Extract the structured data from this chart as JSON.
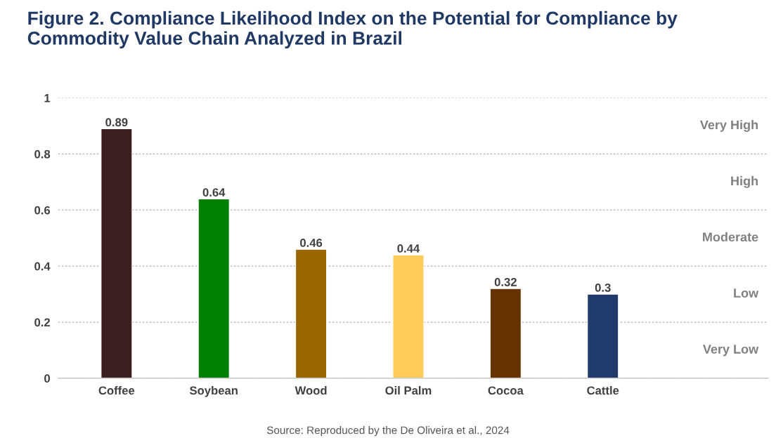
{
  "chart_data": {
    "type": "bar",
    "title": "Figure 2. Compliance Likelihood Index on the Potential for Compliance by\nCommodity Value Chain Analyzed in Brazil",
    "categories": [
      "Coffee",
      "Soybean",
      "Wood",
      "Oil Palm",
      "Cocoa",
      "Cattle"
    ],
    "values": [
      0.89,
      0.64,
      0.46,
      0.44,
      0.32,
      0.3
    ],
    "colors": [
      "#3a1e20",
      "#008000",
      "#996600",
      "#ffcc5c",
      "#663300",
      "#1f3a6b"
    ],
    "value_labels": [
      "0.89",
      "0.64",
      "0.46",
      "0.44",
      "0.32",
      "0.3"
    ],
    "ylim": [
      0,
      1
    ],
    "yticks": [
      {
        "value": 0,
        "label": "0"
      },
      {
        "value": 0.2,
        "label": "0.2"
      },
      {
        "value": 0.4,
        "label": "0.4"
      },
      {
        "value": 0.6,
        "label": "0.6"
      },
      {
        "value": 0.8,
        "label": "0.8"
      },
      {
        "value": 1,
        "label": "1"
      }
    ],
    "grid": "y",
    "annotations": [
      "Very High",
      "High",
      "Moderate",
      "Low",
      "Very Low",
      "Source: Reproduced by the De Oliveira et al., 2024"
    ]
  }
}
